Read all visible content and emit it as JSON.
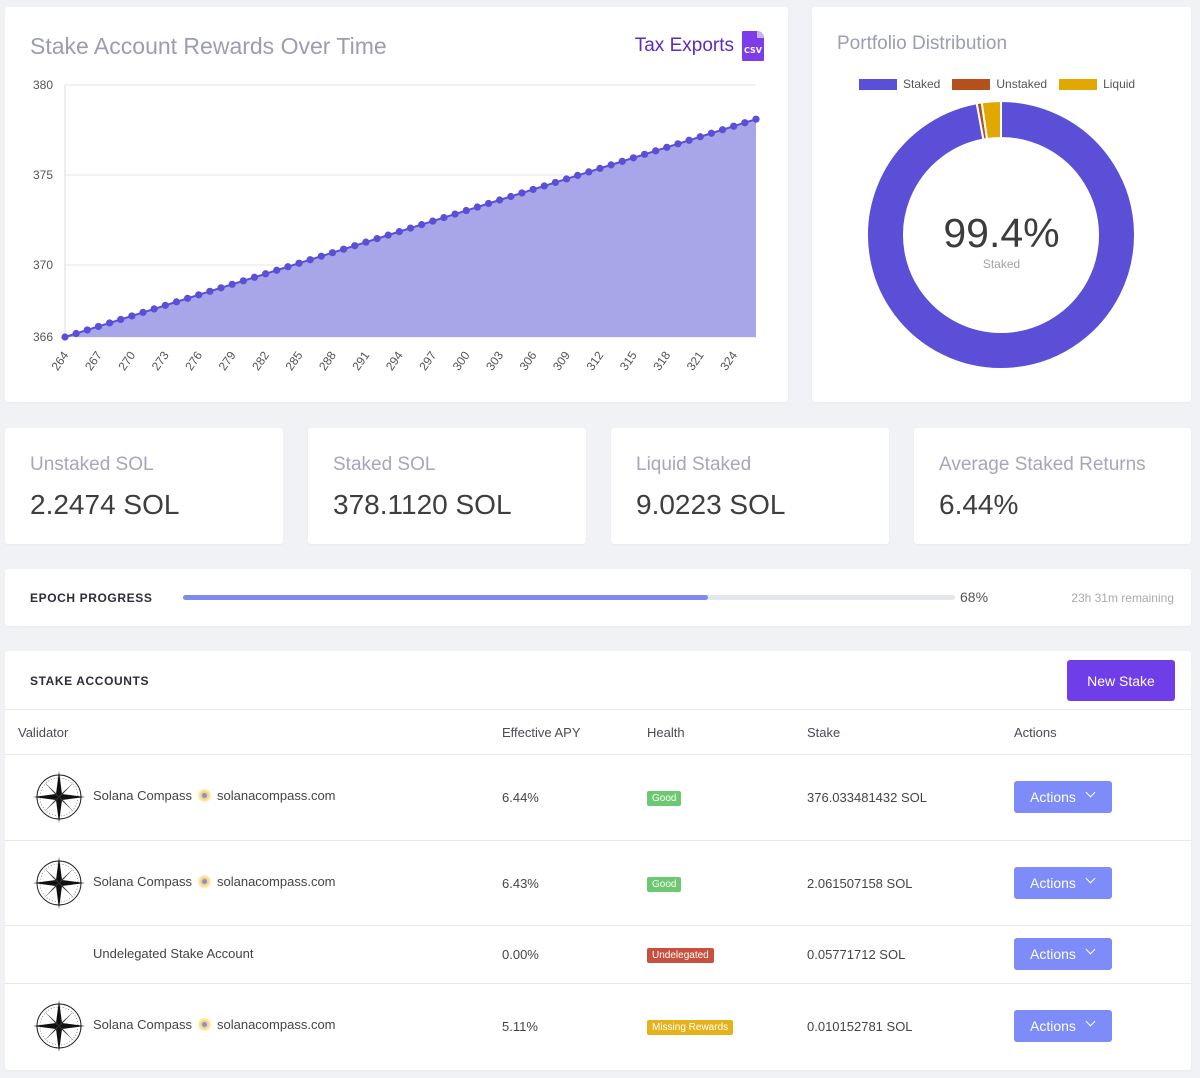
{
  "rewards": {
    "title": "Stake Account Rewards Over Time",
    "tax_export_label": "Tax Exports",
    "csv_icon_text": "CSV"
  },
  "chart_data": {
    "type": "area",
    "title": "Stake Account Rewards Over Time",
    "xlabel": "",
    "ylabel": "",
    "x_start": 264,
    "x_end": 326,
    "x_ticks": [
      264,
      267,
      270,
      273,
      276,
      279,
      282,
      285,
      288,
      291,
      294,
      297,
      300,
      303,
      306,
      309,
      312,
      315,
      318,
      321,
      324
    ],
    "y_ticks": [
      366,
      370,
      375,
      380
    ],
    "ylim": [
      366,
      380
    ],
    "y_start": 366.0,
    "y_end": 378.1,
    "series": [
      {
        "color": "#5a4fd6",
        "fill": "#a7a6e8"
      }
    ],
    "grid": true
  },
  "portfolio": {
    "title": "Portfolio Distribution",
    "center_value": "99.4%",
    "center_label": "Staked",
    "chart_data": {
      "type": "pie",
      "labels": [
        "Staked",
        "Unstaked",
        "Liquid"
      ],
      "values": [
        97.1,
        0.6,
        2.3
      ],
      "colors": [
        "#5a4fd6",
        "#b5501c",
        "#e0a800"
      ]
    }
  },
  "stats": [
    {
      "label": "Unstaked SOL",
      "value": "2.2474 SOL"
    },
    {
      "label": "Staked SOL",
      "value": "378.1120 SOL"
    },
    {
      "label": "Liquid Staked",
      "value": "9.0223 SOL"
    },
    {
      "label": "Average Staked Returns",
      "value": "6.44%"
    }
  ],
  "epoch": {
    "title": "EPOCH PROGRESS",
    "progress": 0.68,
    "percent_text": "68%",
    "remaining": "23h 31m remaining"
  },
  "stake_accounts": {
    "title": "STAKE ACCOUNTS",
    "new_stake_label": "New Stake",
    "columns": [
      "Validator",
      "Effective APY",
      "Health",
      "Stake",
      "Actions"
    ],
    "rows": [
      {
        "name": "Solana Compass",
        "site": "solanacompass.com",
        "apy": "6.44%",
        "health": "Good",
        "health_color": "#6dc971",
        "stake": "376.033481432 SOL",
        "action": "Actions",
        "has_logo": true
      },
      {
        "name": "Solana Compass",
        "site": "solanacompass.com",
        "apy": "6.43%",
        "health": "Good",
        "health_color": "#6dc971",
        "stake": "2.061507158 SOL",
        "action": "Actions",
        "has_logo": true
      },
      {
        "name": "Undelegated Stake Account",
        "site": "",
        "apy": "0.00%",
        "health": "Undelegated",
        "health_color": "#c7503f",
        "stake": "0.05771712 SOL",
        "action": "Actions",
        "has_logo": false
      },
      {
        "name": "Solana Compass",
        "site": "solanacompass.com",
        "apy": "5.11%",
        "health": "Missing Rewards",
        "health_color": "#e5b21c",
        "stake": "0.010152781 SOL",
        "action": "Actions",
        "has_logo": true
      }
    ]
  }
}
